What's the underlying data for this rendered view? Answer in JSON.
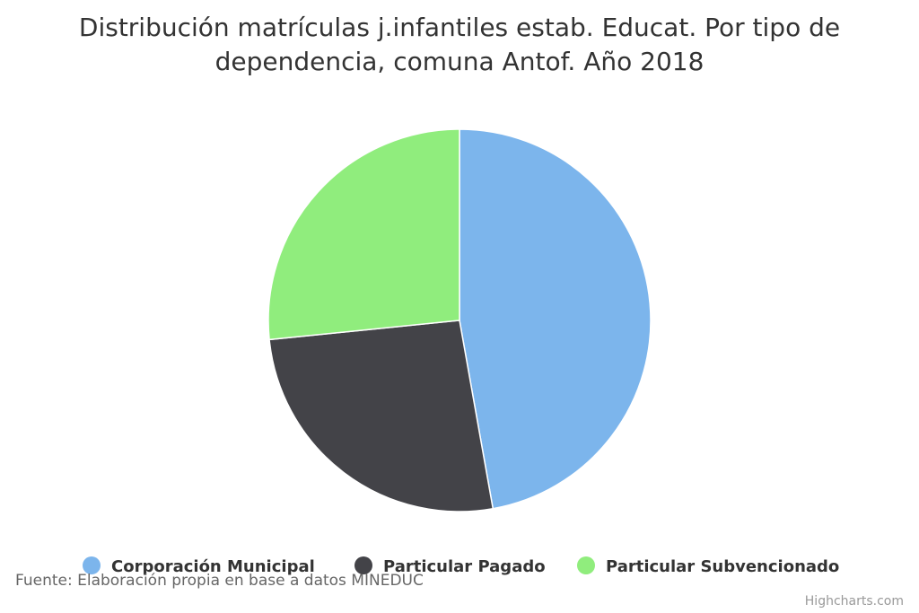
{
  "chart_data": {
    "type": "pie",
    "title": "Distribución matrículas j.infantiles estab. Educat. Por tipo de dependencia, comuna Antof. Año 2018",
    "categories": [
      "Corporación Municipal",
      "Particular Pagado",
      "Particular Subvencionado"
    ],
    "values": [
      47.2,
      26.2,
      26.6
    ],
    "colors": [
      "#7cb5ec",
      "#434348",
      "#90ed7d"
    ],
    "source": "Fuente: Elaboración propia en base a datos MINEDUC",
    "credits": "Highcharts.com"
  }
}
